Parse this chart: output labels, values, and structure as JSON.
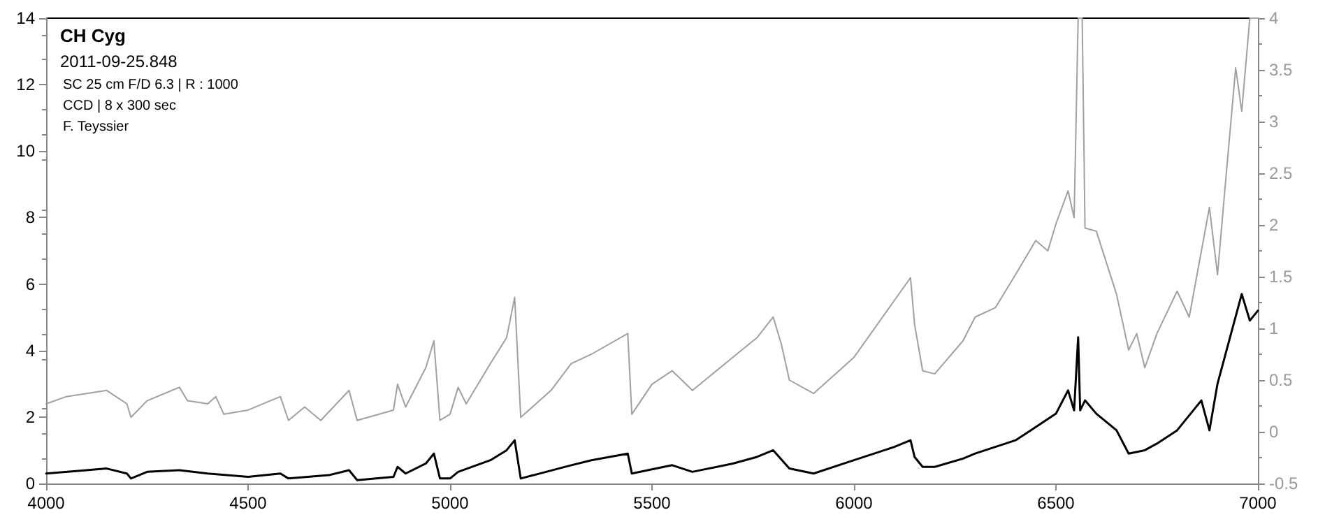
{
  "chart_data": {
    "type": "line",
    "title": "CH Cyg",
    "subtitle": "2011-09-25.848",
    "annotations": [
      "SC 25 cm F/D 6.3 | R : 1000",
      "CCD | 8 x 300 sec",
      "F. Teyssier"
    ],
    "xlim": [
      4000,
      7000
    ],
    "xticks": [
      4000,
      4500,
      5000,
      5500,
      6000,
      6500,
      7000
    ],
    "ylim": [
      0,
      14
    ],
    "yticks": [
      0,
      2,
      4,
      6,
      8,
      10,
      12,
      14
    ],
    "y2lim": [
      -0.5,
      4
    ],
    "y2ticks": [
      -0.5,
      0,
      0.5,
      1,
      1.5,
      2,
      2.5,
      3,
      3.5,
      4
    ],
    "grid": false,
    "marker": "none",
    "line_style": "solid",
    "series": [
      {
        "color": "#000000",
        "x": [
          4000,
          4100,
          4150,
          4200,
          4210,
          4250,
          4330,
          4400,
          4500,
          4580,
          4600,
          4700,
          4750,
          4770,
          4860,
          4870,
          4890,
          4940,
          4960,
          4975,
          5000,
          5020,
          5100,
          5140,
          5160,
          5175,
          5300,
          5350,
          5440,
          5450,
          5550,
          5600,
          5700,
          5760,
          5800,
          5840,
          5900,
          6000,
          6100,
          6140,
          6150,
          6170,
          6200,
          6270,
          6300,
          6400,
          6450,
          6500,
          6530,
          6545,
          6555,
          6560,
          6572,
          6600,
          6650,
          6680,
          6720,
          6750,
          6800,
          6860,
          6880,
          6900,
          6940,
          6960,
          6980,
          7000
        ],
        "values": [
          0.3,
          0.4,
          0.45,
          0.3,
          0.15,
          0.35,
          0.4,
          0.3,
          0.2,
          0.3,
          0.15,
          0.25,
          0.4,
          0.1,
          0.2,
          0.5,
          0.3,
          0.6,
          0.9,
          0.15,
          0.15,
          0.35,
          0.7,
          1.0,
          1.3,
          0.15,
          0.55,
          0.7,
          0.9,
          0.3,
          0.55,
          0.35,
          0.6,
          0.8,
          1.0,
          0.45,
          0.3,
          0.7,
          1.1,
          1.3,
          0.8,
          0.5,
          0.5,
          0.75,
          0.9,
          1.3,
          1.7,
          2.1,
          2.8,
          2.2,
          4.4,
          2.2,
          2.5,
          2.1,
          1.6,
          0.9,
          1.0,
          1.2,
          1.6,
          2.5,
          1.6,
          3.0,
          4.8,
          5.7,
          4.9,
          5.2
        ]
      },
      {
        "color": "#a0a0a0",
        "axis": "y2",
        "x": [
          4000,
          4050,
          4100,
          4150,
          4200,
          4210,
          4250,
          4330,
          4350,
          4400,
          4420,
          4440,
          4500,
          4580,
          4600,
          4640,
          4680,
          4750,
          4770,
          4860,
          4870,
          4890,
          4940,
          4960,
          4975,
          5000,
          5020,
          5040,
          5100,
          5140,
          5160,
          5175,
          5250,
          5300,
          5350,
          5440,
          5450,
          5500,
          5550,
          5600,
          5700,
          5760,
          5800,
          5820,
          5840,
          5900,
          6000,
          6100,
          6140,
          6150,
          6170,
          6200,
          6270,
          6300,
          6350,
          6400,
          6450,
          6480,
          6500,
          6530,
          6545,
          6555,
          6565,
          6572,
          6600,
          6650,
          6680,
          6700,
          6720,
          6750,
          6800,
          6830,
          6880,
          6900,
          6920,
          6945,
          6960,
          6980,
          7000
        ],
        "values": [
          0.27,
          0.34,
          0.37,
          0.4,
          0.27,
          0.14,
          0.3,
          0.43,
          0.3,
          0.27,
          0.34,
          0.17,
          0.21,
          0.34,
          0.11,
          0.24,
          0.11,
          0.4,
          0.11,
          0.21,
          0.46,
          0.24,
          0.62,
          0.88,
          0.11,
          0.17,
          0.43,
          0.27,
          0.66,
          0.91,
          1.3,
          0.14,
          0.4,
          0.66,
          0.75,
          0.95,
          0.17,
          0.46,
          0.59,
          0.4,
          0.72,
          0.91,
          1.11,
          0.85,
          0.5,
          0.37,
          0.72,
          1.27,
          1.49,
          1.04,
          0.59,
          0.56,
          0.88,
          1.11,
          1.2,
          1.52,
          1.85,
          1.75,
          2.01,
          2.33,
          2.07,
          4,
          4,
          1.97,
          1.94,
          1.33,
          0.79,
          0.95,
          0.62,
          0.95,
          1.36,
          1.11,
          2.17,
          1.52,
          2.42,
          3.52,
          3.1,
          4,
          4
        ]
      }
    ]
  }
}
